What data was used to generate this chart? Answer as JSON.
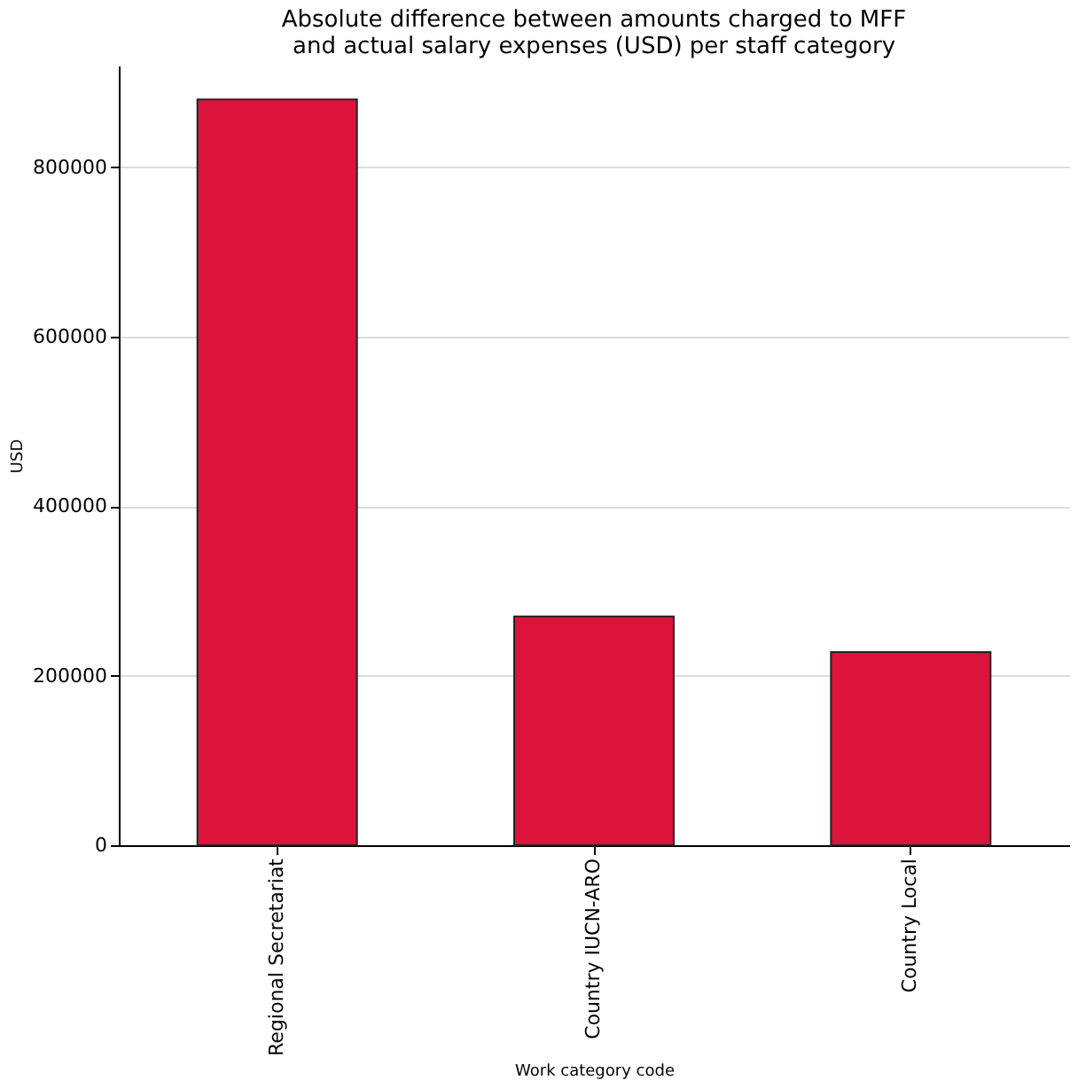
{
  "chart_data": {
    "type": "bar",
    "title": "Absolute difference between amounts charged to MFF\nand actual salary expenses (USD) per staff category",
    "xlabel": "Work category code",
    "ylabel": "USD",
    "categories": [
      "Regional Secretariat",
      "Country IUCN-ARO",
      "Country Local"
    ],
    "values": [
      880000,
      270000,
      228000
    ],
    "color": "#dc143c",
    "ylim": [
      0,
      920000
    ],
    "yticks": [
      0,
      200000,
      400000,
      600000,
      800000
    ],
    "grid": "y"
  }
}
